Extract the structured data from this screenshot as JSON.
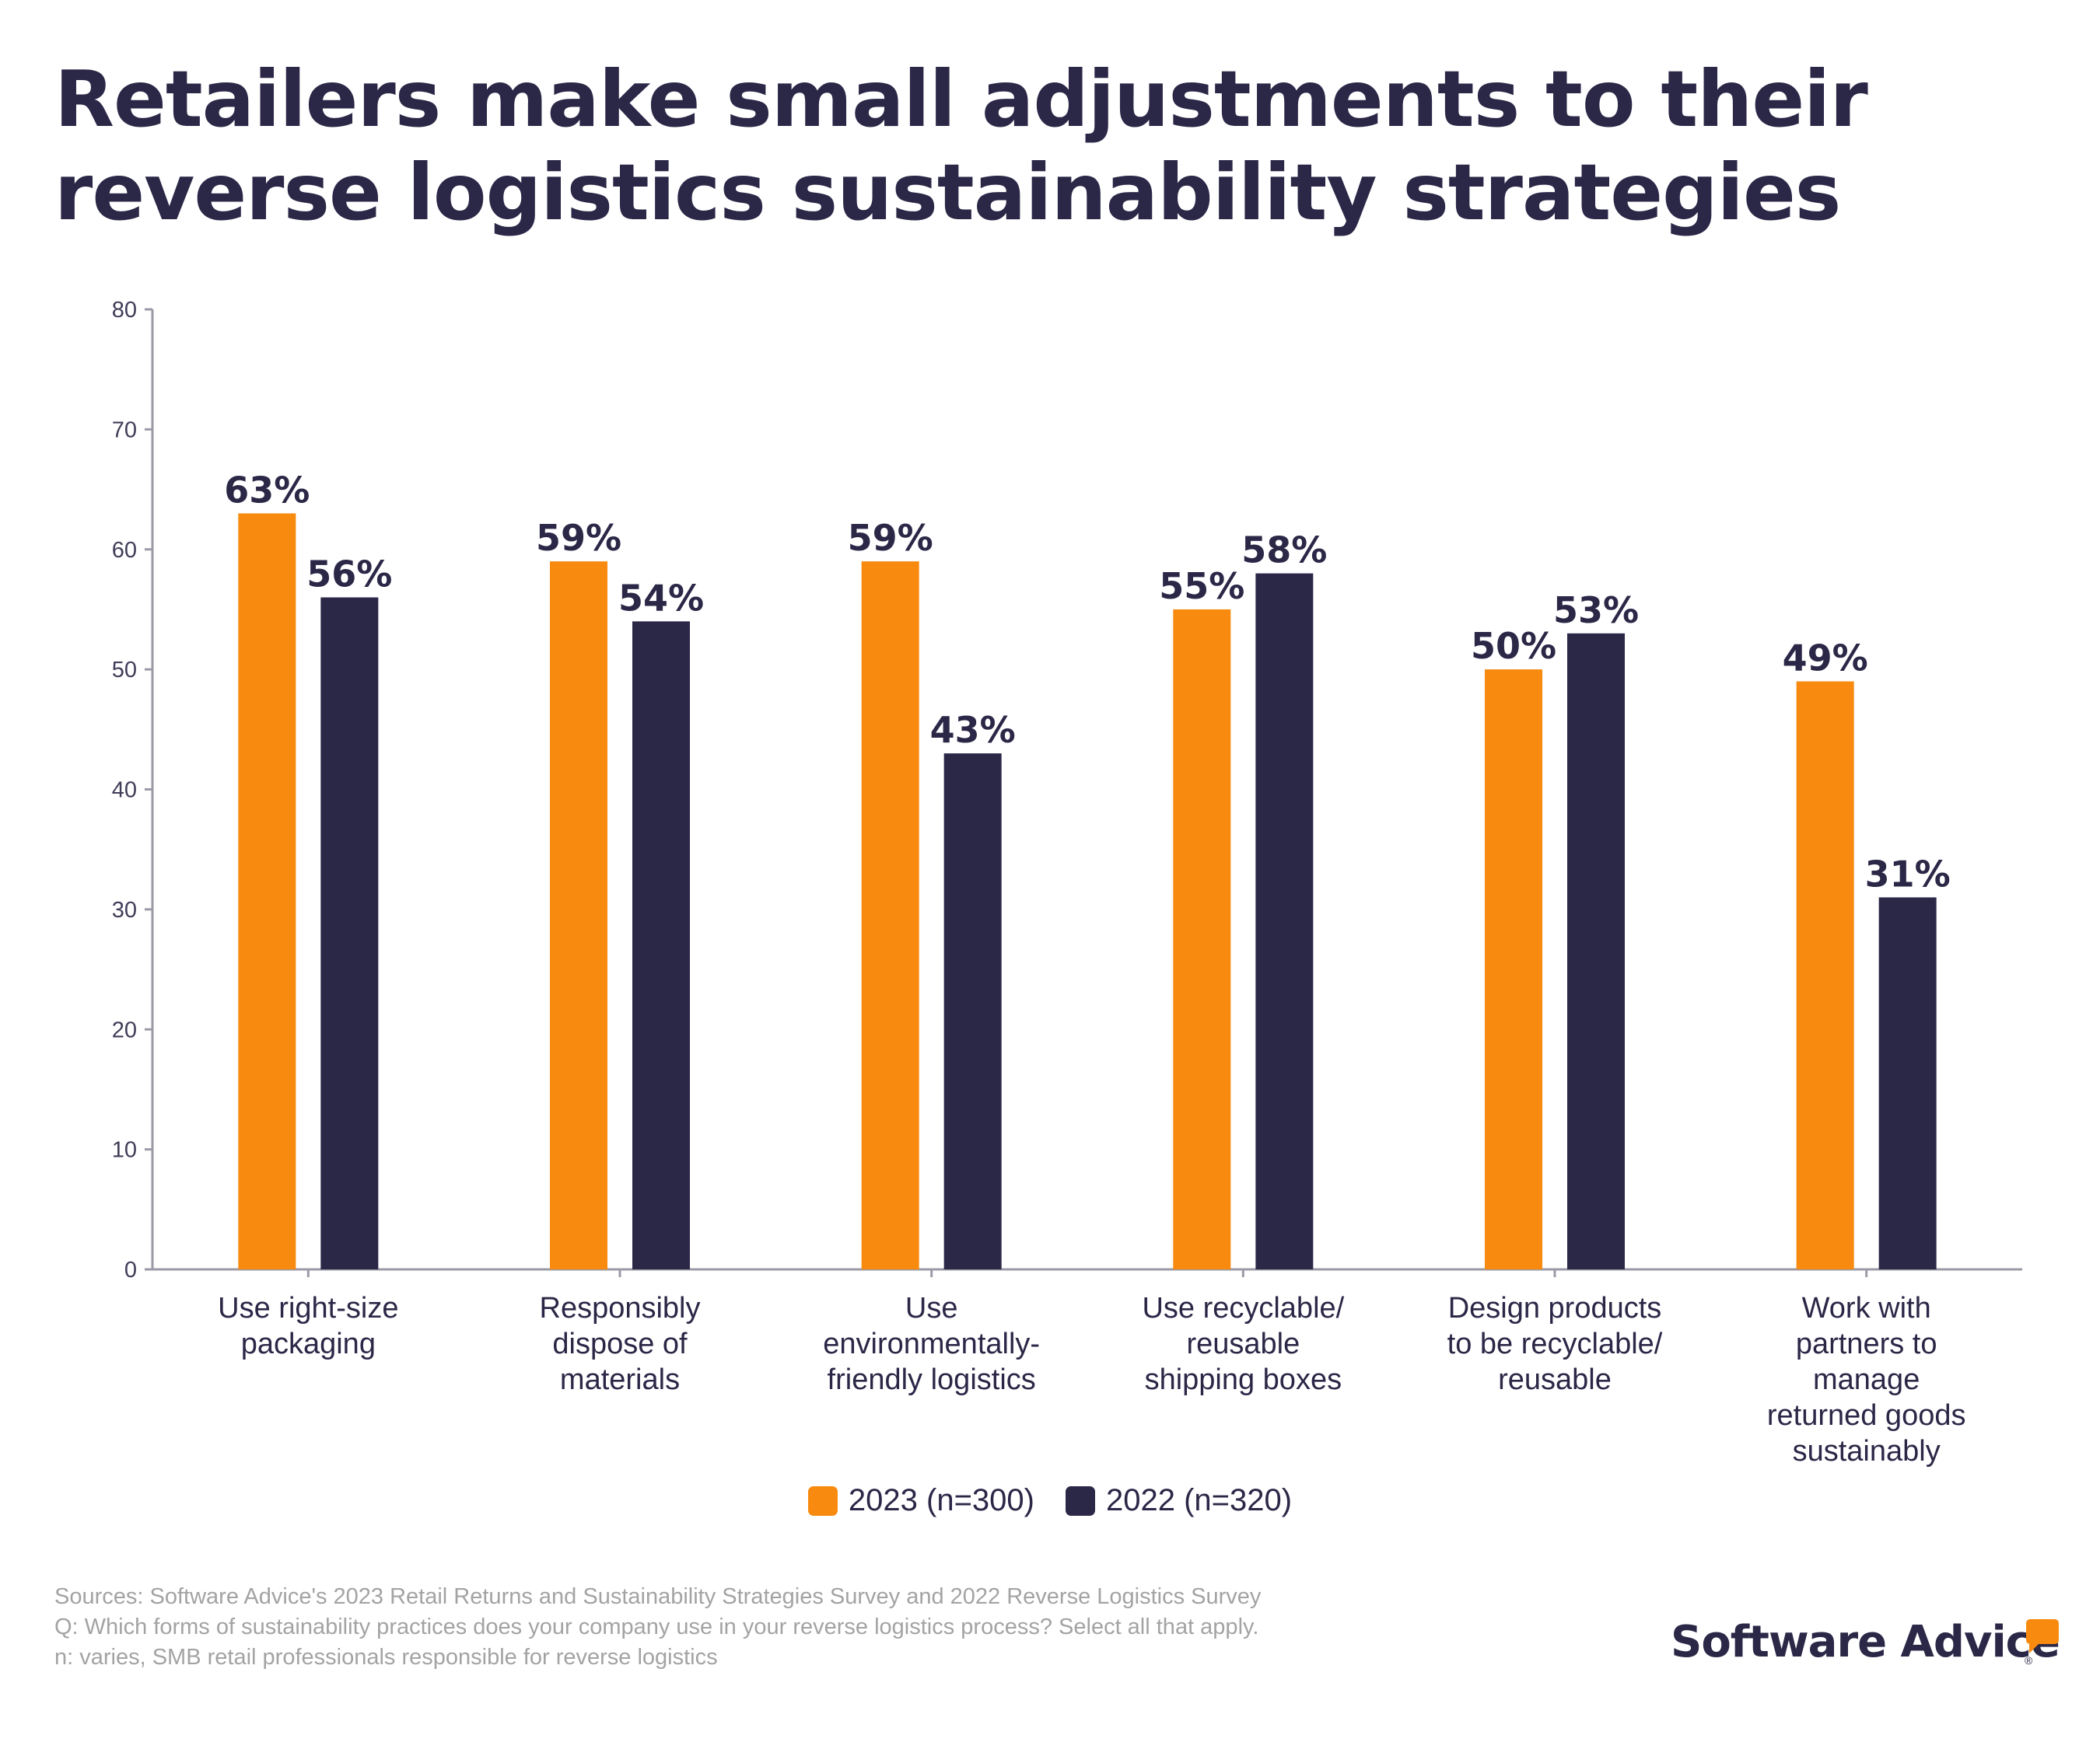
{
  "title_lines": [
    "Retailers make small adjustments to their",
    "reverse logistics sustainability strategies"
  ],
  "colors": {
    "series_2023": "#f78a0f",
    "series_2022": "#2b2747",
    "axis": "#9b9aa6",
    "text": "#2b2747"
  },
  "chart_data": {
    "type": "bar",
    "title": "Retailers make small adjustments to their reverse logistics sustainability strategies",
    "categories": [
      [
        "Use right-size",
        "packaging"
      ],
      [
        "Responsibly",
        "dispose of",
        "materials"
      ],
      [
        "Use",
        "environmentally-",
        "friendly logistics"
      ],
      [
        "Use recyclable/",
        "reusable",
        "shipping boxes"
      ],
      [
        "Design products",
        "to be recyclable/",
        "reusable"
      ],
      [
        "Work with",
        "partners to",
        "manage",
        "returned goods",
        "sustainably"
      ]
    ],
    "series": [
      {
        "name": "2023 (n=300)",
        "values": [
          63,
          59,
          59,
          55,
          50,
          49
        ],
        "labels": [
          "63%",
          "59%",
          "59%",
          "55%",
          "50%",
          "49%"
        ]
      },
      {
        "name": "2022 (n=320)",
        "values": [
          56,
          54,
          43,
          58,
          53,
          31
        ],
        "labels": [
          "56%",
          "54%",
          "43%",
          "58%",
          "53%",
          "31%"
        ]
      }
    ],
    "ylim": [
      0,
      80
    ],
    "yticks": [
      0,
      10,
      20,
      30,
      40,
      50,
      60,
      70,
      80
    ],
    "xlabel": "",
    "ylabel": "",
    "legend": "bottom-center",
    "grid": false
  },
  "sources": [
    "Sources: Software Advice's 2023 Retail Returns and Sustainability Strategies Survey and 2022 Reverse Logistics Survey",
    "Q: Which forms of sustainability practices does your company use in your reverse logistics process? Select all that apply.",
    "n: varies, SMB retail professionals responsible for reverse logistics"
  ],
  "brand": {
    "name": "Software Advice",
    "reg": "®",
    "icon": "speech-bubble-icon"
  }
}
